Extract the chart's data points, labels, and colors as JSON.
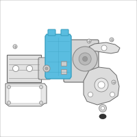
{
  "background_color": "#ffffff",
  "border_color": "#c8c8c8",
  "highlight_color": "#5abde0",
  "part_color": "#d8d8d8",
  "outline_color": "#888888",
  "dark_outline": "#666666",
  "light_gray": "#bbbbbb",
  "white": "#ffffff",
  "screw_color": "#999999",
  "figsize": [
    2.0,
    2.0
  ],
  "dpi": 100
}
